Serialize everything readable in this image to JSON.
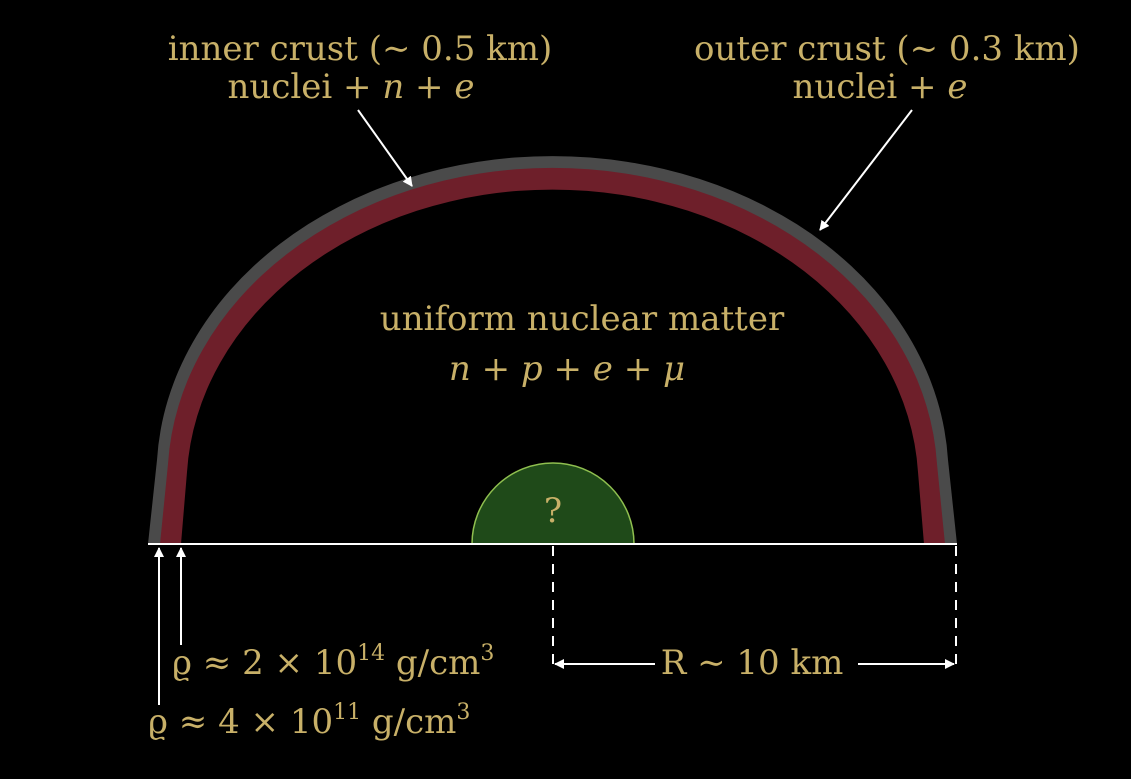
{
  "colors": {
    "background": "#000000",
    "outer_crust": "#4a4a4a",
    "inner_crust": "#6e1f2a",
    "core": "#1f4a19",
    "core_outline": "#8fbf4f",
    "text": "#c8b068",
    "lines": "#ffffff"
  },
  "inner_crust": {
    "line1_a": "inner  crust  (",
    "line1_b": "∼ 0.5",
    "line1_c": "  km)",
    "line2_a": "nuclei  +  ",
    "line2_b": "n + e"
  },
  "outer_crust": {
    "line1_a": "outer  crust  (",
    "line1_b": "∼ 0.3",
    "line1_c": "  km)",
    "line2_a": "nuclei  +  ",
    "line2_b": "e"
  },
  "interior": {
    "title": "uniform nuclear matter",
    "composition": "n  +  p  +  e  +  μ"
  },
  "core": {
    "label": "?"
  },
  "density_inner": {
    "prefix": "ϱ ≈ 2 × 10",
    "exponent": "14",
    "unit": " g/cm",
    "unit_exp": "3"
  },
  "density_outer": {
    "prefix": "ϱ ≈ 4 × 10",
    "exponent": "11",
    "unit": " g/cm",
    "unit_exp": "3"
  },
  "radius": {
    "label": "R ∼ 10 km"
  }
}
